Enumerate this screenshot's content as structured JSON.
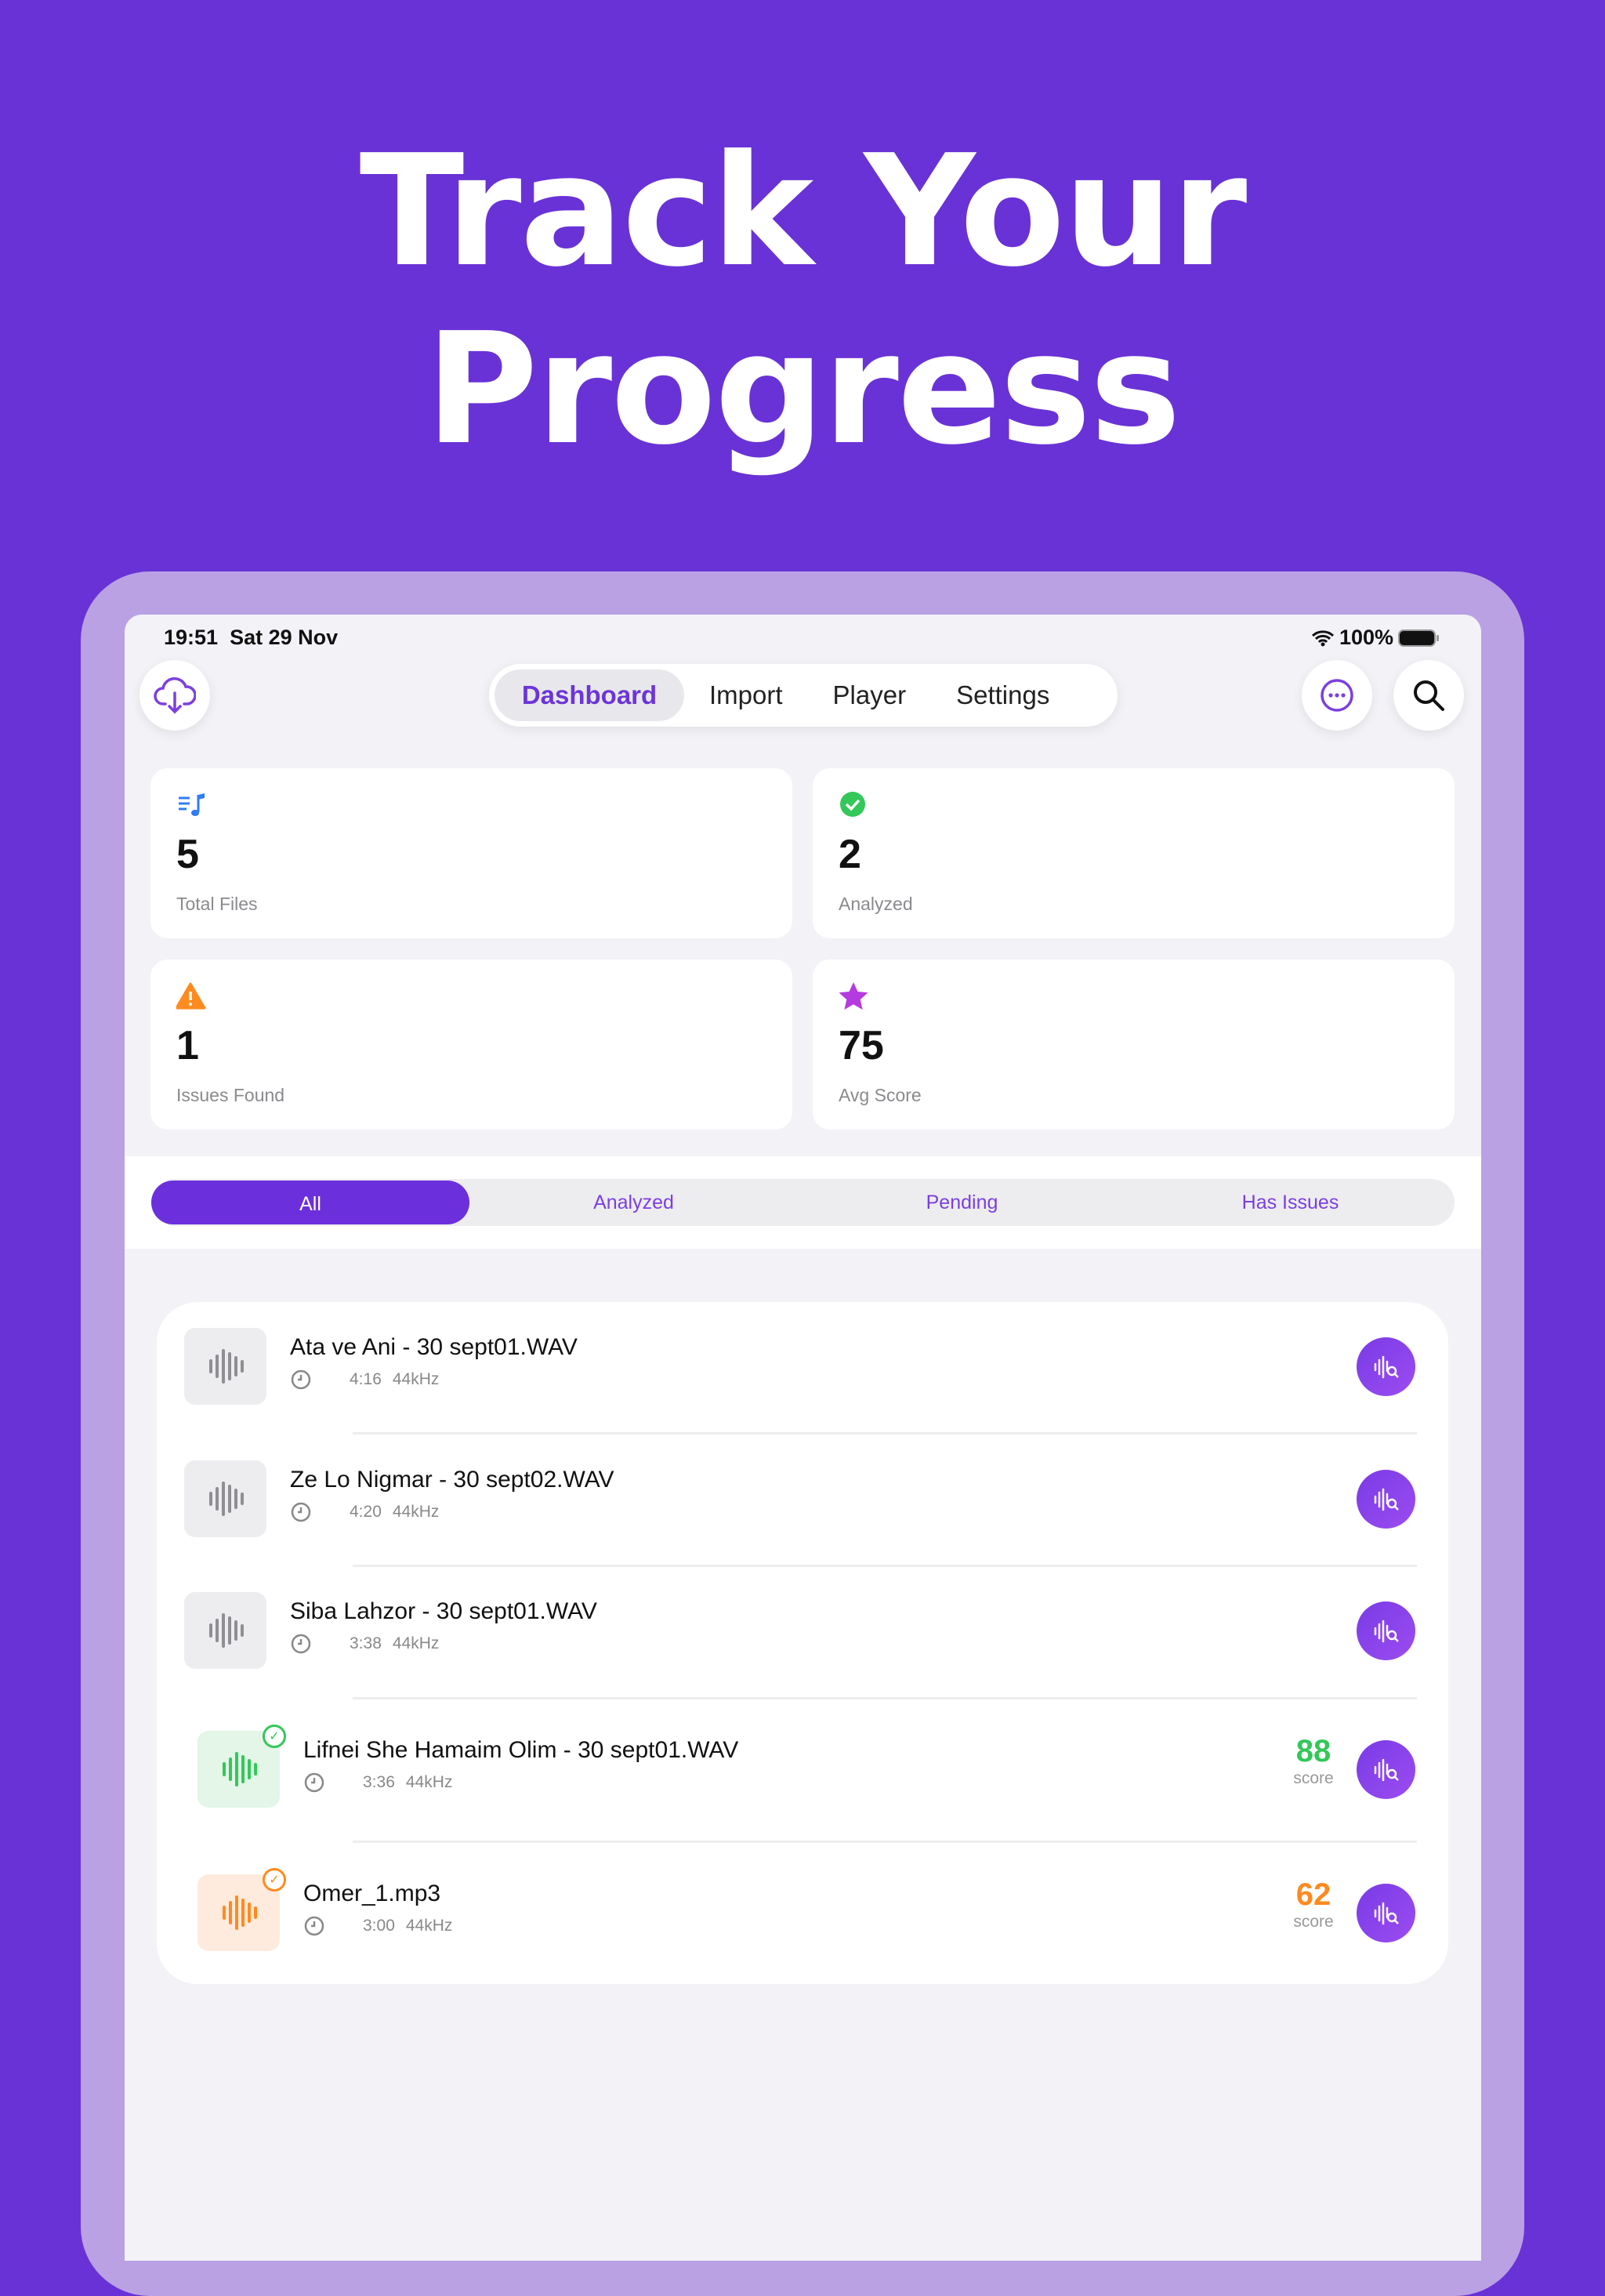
{
  "headline": {
    "line1": "Track Your",
    "line2": "Progress"
  },
  "status_bar": {
    "time": "19:51",
    "date": "Sat 29 Nov",
    "battery": "100%"
  },
  "nav": {
    "tabs": [
      {
        "label": "Dashboard",
        "selected": true
      },
      {
        "label": "Import"
      },
      {
        "label": "Player"
      },
      {
        "label": "Settings"
      }
    ]
  },
  "stats": [
    {
      "icon": "music-list-icon",
      "value": "5",
      "label": "Total Files",
      "color": "#2F7CF6"
    },
    {
      "icon": "check-circle-icon",
      "value": "2",
      "label": "Analyzed",
      "color": "#34C759"
    },
    {
      "icon": "warning-triangle-icon",
      "value": "1",
      "label": "Issues Found",
      "color": "#FF8A1F"
    },
    {
      "icon": "star-icon",
      "value": "75",
      "label": "Avg Score",
      "color": "#B33BE0"
    }
  ],
  "filters": [
    {
      "label": "All",
      "selected": true
    },
    {
      "label": "Analyzed"
    },
    {
      "label": "Pending"
    },
    {
      "label": "Has Issues"
    }
  ],
  "files": [
    {
      "name": "Ata ve Ani - 30 sept01.WAV",
      "duration": "4:16",
      "rate": "44kHz",
      "state": "pending"
    },
    {
      "name": "Ze Lo Nigmar - 30 sept02.WAV",
      "duration": "4:20",
      "rate": "44kHz",
      "state": "pending"
    },
    {
      "name": "Siba Lahzor - 30 sept01.WAV",
      "duration": "3:38",
      "rate": "44kHz",
      "state": "pending"
    },
    {
      "name": "Lifnei She Hamaim Olim - 30 sept01.WAV",
      "duration": "3:36",
      "rate": "44kHz",
      "state": "good",
      "score": "88",
      "score_label": "score",
      "color": "#34C759"
    },
    {
      "name": "Omer_1.mp3",
      "duration": "3:00",
      "rate": "44kHz",
      "state": "issues",
      "score": "62",
      "score_label": "score",
      "color": "#FF8A1F"
    }
  ],
  "colors": {
    "background": "#6932D6",
    "accent": "#6C2FDC"
  }
}
